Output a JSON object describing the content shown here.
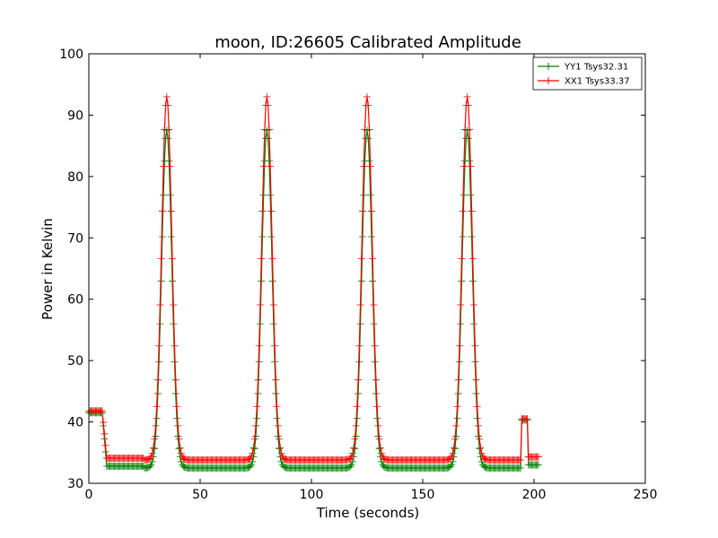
{
  "chart_data": {
    "type": "line",
    "title": "moon, ID:26605 Calibrated Amplitude",
    "xlabel": "Time (seconds)",
    "ylabel": "Power in Kelvin",
    "xlim": [
      0,
      250
    ],
    "ylim": [
      30,
      100
    ],
    "xticks": [
      "0",
      "50",
      "100",
      "150",
      "200",
      "250"
    ],
    "yticks": [
      "30",
      "40",
      "50",
      "60",
      "70",
      "80",
      "90",
      "100"
    ],
    "legend_position": "top-right",
    "peaks": [
      35,
      80,
      125,
      170
    ],
    "series": [
      {
        "name": "YY1 Tsys32.31",
        "color": "#008000",
        "base": 32.5,
        "peak": 87.5,
        "start_level": 41.5,
        "end_level": 40.3,
        "low_level": 33.0
      },
      {
        "name": "XX1 Tsys33.37",
        "color": "#ff0000",
        "base": 33.8,
        "peak": 93.0,
        "start_level": 41.8,
        "end_level": 40.5,
        "low_level": 34.3
      }
    ]
  }
}
